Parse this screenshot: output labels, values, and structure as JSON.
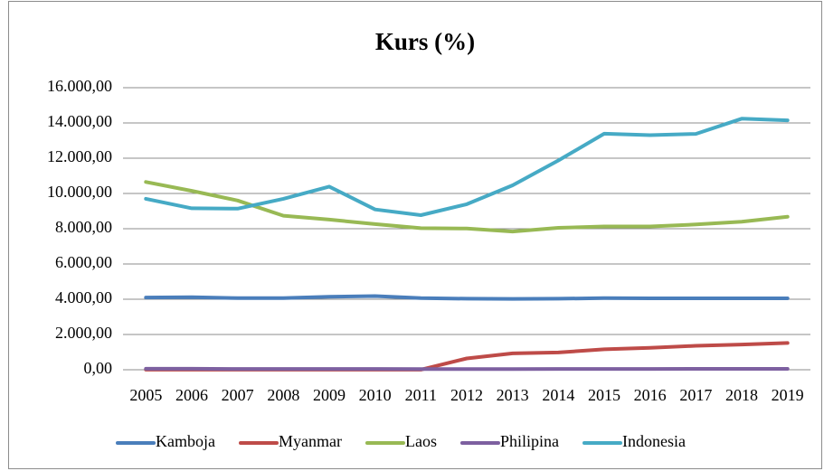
{
  "chart_data": {
    "type": "line",
    "title": "Kurs (%)",
    "categories": [
      "2005",
      "2006",
      "2007",
      "2008",
      "2009",
      "2010",
      "2011",
      "2012",
      "2013",
      "2014",
      "2015",
      "2016",
      "2017",
      "2018",
      "2019"
    ],
    "series": [
      {
        "name": "Kamboja",
        "color": "#4a7ebb",
        "values": [
          4100,
          4120,
          4060,
          4060,
          4140,
          4180,
          4060,
          4030,
          4020,
          4030,
          4060,
          4050,
          4050,
          4050,
          4050
        ]
      },
      {
        "name": "Myanmar",
        "color": "#be4b48",
        "values": [
          5.8,
          5.8,
          5.6,
          5.4,
          5.5,
          5.6,
          5.4,
          640,
          930,
          980,
          1160,
          1240,
          1360,
          1430,
          1520
        ]
      },
      {
        "name": "Laos",
        "color": "#98b954",
        "values": [
          10650,
          10150,
          9600,
          8740,
          8520,
          8260,
          8030,
          8010,
          7840,
          8050,
          8130,
          8130,
          8240,
          8400,
          8680
        ]
      },
      {
        "name": "Philipina",
        "color": "#7d60a0",
        "values": [
          56,
          55,
          46,
          44,
          48,
          45,
          43,
          42,
          43,
          44,
          45,
          47,
          50,
          52,
          51
        ]
      },
      {
        "name": "Indonesia",
        "color": "#46aac5",
        "values": [
          9700,
          9160,
          9140,
          9700,
          10390,
          9090,
          8770,
          9390,
          10460,
          11870,
          13390,
          13310,
          13380,
          14240,
          14150
        ]
      }
    ],
    "ylim": [
      0,
      16000
    ],
    "yticks": [
      {
        "value": 0,
        "label": "0,00"
      },
      {
        "value": 2000,
        "label": "2.000,00"
      },
      {
        "value": 4000,
        "label": "4.000,00"
      },
      {
        "value": 6000,
        "label": "6.000,00"
      },
      {
        "value": 8000,
        "label": "8.000,00"
      },
      {
        "value": 10000,
        "label": "10.000,00"
      },
      {
        "value": 12000,
        "label": "12.000,00"
      },
      {
        "value": 14000,
        "label": "14.000,00"
      },
      {
        "value": 16000,
        "label": "16.000,00"
      }
    ],
    "grid": true,
    "legend": "bottom"
  }
}
